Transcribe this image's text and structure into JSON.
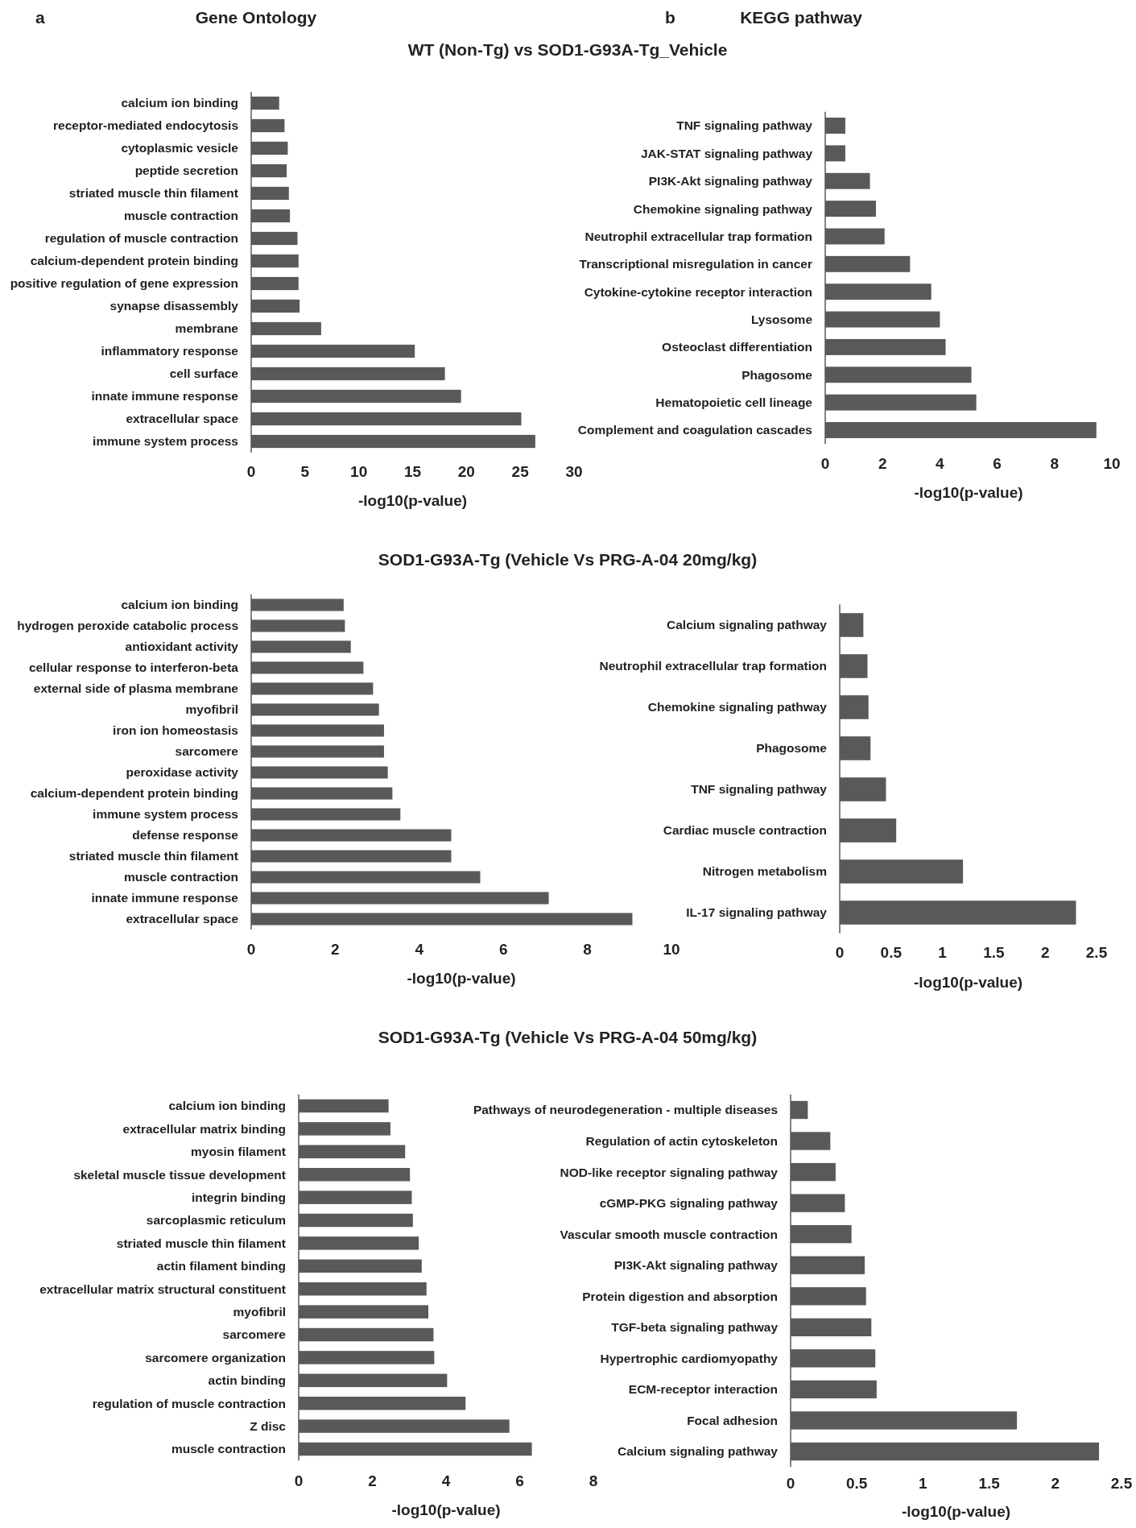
{
  "chart_data": [
    {
      "type": "bar",
      "orientation": "horizontal",
      "title": "WT (Non-Tg) vs SOD1-G93A-Tg_Vehicle",
      "annotations": [
        "a",
        "Gene Ontology"
      ],
      "xlabel": "-log10(p-value)",
      "categories": [
        "calcium ion binding",
        "receptor-mediated endocytosis",
        "cytoplasmic vesicle",
        "peptide secretion",
        "striated muscle thin filament",
        "muscle contraction",
        "regulation of muscle contraction",
        "calcium-dependent protein binding",
        "positive regulation of gene expression",
        "synapse disassembly",
        "membrane",
        "inflammatory response",
        "cell surface",
        "innate immune response",
        "extracellular space",
        "immune system process"
      ],
      "values": [
        2.6,
        3.1,
        3.4,
        3.3,
        3.5,
        3.6,
        4.3,
        4.4,
        4.4,
        4.5,
        6.5,
        15.2,
        18.0,
        19.5,
        25.1,
        26.4
      ],
      "color": "#595959",
      "xlim": [
        0,
        30
      ],
      "xticks": [
        0,
        5,
        10,
        15,
        20,
        25,
        30
      ]
    },
    {
      "type": "bar",
      "orientation": "horizontal",
      "annotations": [
        "b",
        "KEGG pathway"
      ],
      "xlabel": "-log10(p-value)",
      "categories": [
        "TNF signaling pathway",
        "JAK-STAT signaling pathway",
        "PI3K-Akt signaling pathway",
        "Chemokine signaling pathway",
        "Neutrophil extracellular trap formation",
        "Transcriptional misregulation in cancer",
        "Cytokine-cytokine receptor interaction",
        "Lysosome",
        "Osteoclast differentiation",
        "Phagosome",
        "Hematopoietic cell lineage",
        "Complement and coagulation cascades"
      ],
      "values": [
        0.7,
        0.7,
        1.56,
        1.77,
        2.07,
        2.96,
        3.7,
        4.0,
        4.2,
        5.1,
        5.27,
        9.46
      ],
      "color": "#595959",
      "xlim": [
        0,
        10
      ],
      "xticks": [
        0,
        2,
        4,
        6,
        8,
        10
      ]
    },
    {
      "type": "bar",
      "orientation": "horizontal",
      "title": "SOD1-G93A-Tg (Vehicle Vs PRG-A-04 20mg/kg)",
      "xlabel": "-log10(p-value)",
      "categories": [
        "calcium ion binding",
        "hydrogen peroxide catabolic process",
        "antioxidant activity",
        "cellular response to interferon-beta",
        "external side of plasma membrane",
        "myofibril",
        "iron ion homeostasis",
        "sarcomere",
        "peroxidase activity",
        "calcium-dependent protein binding",
        "immune system process",
        "defense response",
        "striated muscle thin filament",
        "muscle contraction",
        "innate immune response",
        "extracellular space"
      ],
      "values": [
        2.2,
        2.23,
        2.37,
        2.67,
        2.9,
        3.04,
        3.16,
        3.16,
        3.25,
        3.36,
        3.55,
        4.76,
        4.76,
        5.45,
        7.08,
        9.07
      ],
      "color": "#595959",
      "xlim": [
        0,
        10
      ],
      "xticks": [
        0,
        2,
        4,
        6,
        8,
        10
      ]
    },
    {
      "type": "bar",
      "orientation": "horizontal",
      "xlabel": "-log10(p-value)",
      "categories": [
        "Calcium signaling pathway",
        "Neutrophil extracellular trap formation",
        "Chemokine signaling pathway",
        "Phagosome",
        "TNF signaling pathway",
        "Cardiac muscle contraction",
        "Nitrogen metabolism",
        "IL-17 signaling pathway"
      ],
      "values": [
        0.23,
        0.27,
        0.28,
        0.3,
        0.45,
        0.55,
        1.2,
        2.3
      ],
      "color": "#595959",
      "xlim": [
        0,
        2.5
      ],
      "xticks": [
        0,
        0.5,
        1,
        1.5,
        2,
        2.5
      ]
    },
    {
      "type": "bar",
      "orientation": "horizontal",
      "title": "SOD1-G93A-Tg (Vehicle Vs PRG-A-04 50mg/kg)",
      "xlabel": "-log10(p-value)",
      "categories": [
        "calcium ion binding",
        "extracellular matrix binding",
        "myosin filament",
        "skeletal muscle tissue development",
        "integrin binding",
        "sarcoplasmic reticulum",
        "striated muscle thin filament",
        "actin filament binding",
        "extracellular matrix structural constituent",
        "myofibril",
        "sarcomere",
        "sarcomere organization",
        "actin binding",
        "regulation of muscle contraction",
        "Z disc",
        "muscle contraction"
      ],
      "values": [
        2.44,
        2.49,
        2.89,
        3.02,
        3.07,
        3.1,
        3.26,
        3.34,
        3.47,
        3.52,
        3.66,
        3.68,
        4.03,
        4.53,
        5.72,
        6.33
      ],
      "color": "#595959",
      "xlim": [
        0,
        8
      ],
      "xticks": [
        0,
        2,
        4,
        6,
        8
      ]
    },
    {
      "type": "bar",
      "orientation": "horizontal",
      "xlabel": "-log10(p-value)",
      "categories": [
        "Pathways of neurodegeneration - multiple diseases",
        "Regulation of actin cytoskeleton",
        "NOD-like receptor signaling pathway",
        "cGMP-PKG signaling pathway",
        "Vascular smooth muscle contraction",
        "PI3K-Akt signaling pathway",
        "Protein digestion and absorption",
        "TGF-beta signaling pathway",
        "Hypertrophic cardiomyopathy",
        "ECM-receptor interaction",
        "Focal adhesion",
        "Calcium signaling pathway"
      ],
      "values": [
        0.13,
        0.3,
        0.34,
        0.41,
        0.46,
        0.56,
        0.57,
        0.61,
        0.64,
        0.65,
        1.71,
        2.33
      ],
      "color": "#595959",
      "xlim": [
        0,
        2.5
      ],
      "xticks": [
        0,
        0.5,
        1,
        1.5,
        2,
        2.5
      ]
    }
  ]
}
